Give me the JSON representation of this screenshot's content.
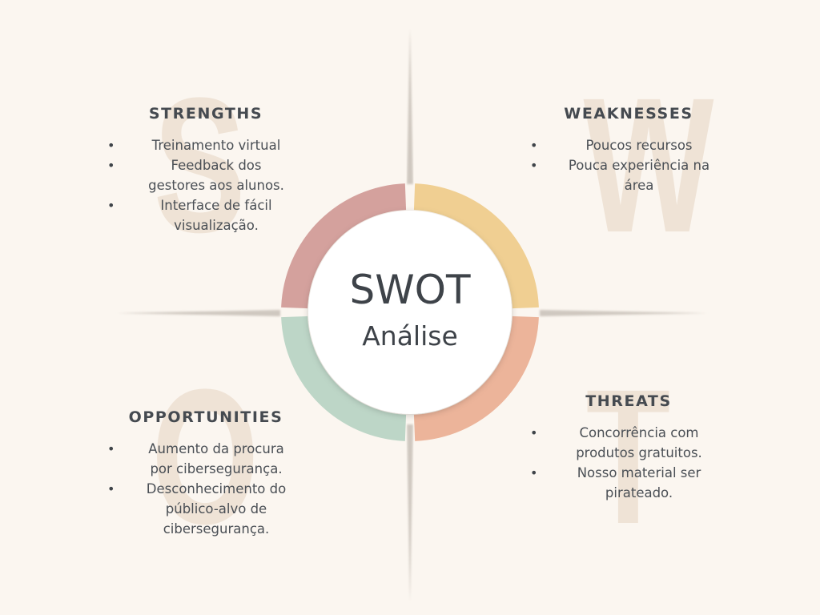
{
  "diagram": {
    "center": {
      "title": "SWOT",
      "subtitle": "Análise"
    },
    "background_letters": {
      "s": "S",
      "w": "W",
      "o": "O",
      "t": "T"
    },
    "colors": {
      "background": "#fbf6f0",
      "strengths_arc": "#d4a19d",
      "weaknesses_arc": "#f0cf92",
      "threats_arc": "#ecb49a",
      "opportunities_arc": "#bdd6c7",
      "center_fill": "#ffffff",
      "text": "#454a50",
      "faint_letter": "#efe3d6"
    },
    "strengths": {
      "heading": "STRENGTHS",
      "items": [
        {
          "bullet": "•",
          "lines": [
            "Treinamento virtual"
          ]
        },
        {
          "bullet": "•",
          "lines": [
            "Feedback dos",
            "gestores aos alunos."
          ]
        },
        {
          "bullet": "•",
          "lines": [
            "Interface de fácil",
            "visualização."
          ]
        }
      ]
    },
    "weaknesses": {
      "heading": "WEAKNESSES",
      "items": [
        {
          "bullet": "•",
          "lines": [
            "Poucos recursos"
          ]
        },
        {
          "bullet": "•",
          "lines": [
            "Pouca experiência na",
            "área"
          ]
        }
      ]
    },
    "opportunities": {
      "heading": "OPPORTUNITIES",
      "items": [
        {
          "bullet": "•",
          "lines": [
            "Aumento da procura",
            "por cibersegurança."
          ]
        },
        {
          "bullet": "•",
          "lines": [
            "Desconhecimento do",
            "público-alvo de",
            "cibersegurança."
          ]
        }
      ]
    },
    "threats": {
      "heading": "THREATS",
      "items": [
        {
          "bullet": "•",
          "lines": [
            "Concorrência com",
            "produtos gratuitos."
          ]
        },
        {
          "bullet": "•",
          "lines": [
            "Nosso material ser",
            "pirateado."
          ]
        }
      ]
    }
  }
}
